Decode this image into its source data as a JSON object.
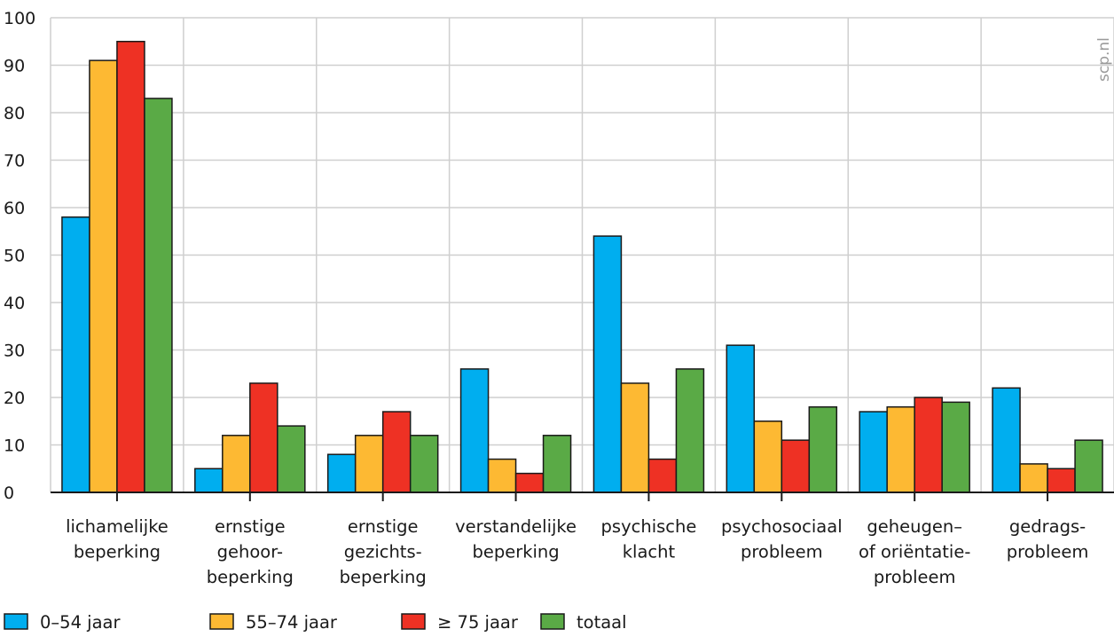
{
  "watermark": "scp.nl",
  "chart_data": {
    "type": "bar",
    "title": "",
    "xlabel": "",
    "ylabel": "",
    "ylim": [
      0,
      100
    ],
    "yticks": [
      0,
      10,
      20,
      30,
      40,
      50,
      60,
      70,
      80,
      90,
      100
    ],
    "grid": true,
    "legend_position": "bottom-left",
    "categories": [
      [
        "lichamelijke",
        "beperking"
      ],
      [
        "ernstige",
        "gehoor-",
        "beperking"
      ],
      [
        "ernstige",
        "gezichts-",
        "beperking"
      ],
      [
        "verstandelijke",
        "beperking"
      ],
      [
        "psychische",
        "klacht"
      ],
      [
        "psychosociaal",
        "probleem"
      ],
      [
        "geheugen–",
        "of oriëntatie-",
        "probleem"
      ],
      [
        "gedrags-",
        "probleem"
      ]
    ],
    "series": [
      {
        "name": "0–54 jaar",
        "color": "#00aeef",
        "values": [
          58,
          5,
          8,
          26,
          54,
          31,
          17,
          22
        ]
      },
      {
        "name": "55–74 jaar",
        "color": "#fdb933",
        "values": [
          91,
          12,
          12,
          7,
          23,
          15,
          18,
          6
        ]
      },
      {
        "name": "≥ 75 jaar",
        "color": "#ee3124",
        "values": [
          95,
          23,
          17,
          4,
          7,
          11,
          20,
          5
        ]
      },
      {
        "name": "totaal",
        "color": "#5aaa46",
        "values": [
          83,
          14,
          12,
          12,
          26,
          18,
          19,
          11
        ]
      }
    ]
  }
}
